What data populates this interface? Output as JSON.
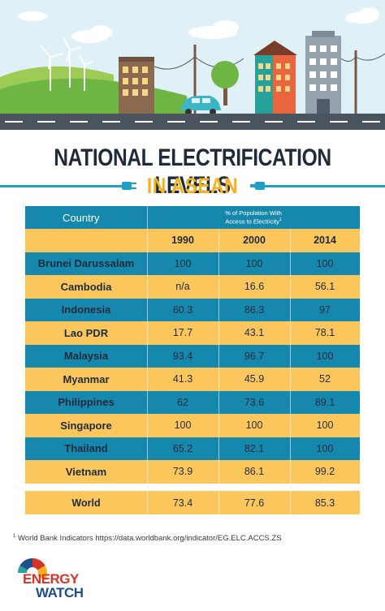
{
  "title": "NATIONAL ELECTRIFICATION LEVELS",
  "subtitle": "IN ASEAN",
  "table": {
    "col_country": "Country",
    "col_population_line1": "% of Population With",
    "col_population_line2": "Access to Electricity",
    "col_population_sup": "1",
    "years": [
      "1990",
      "2000",
      "2014"
    ],
    "rows": [
      {
        "country": "Brunei Darussalam",
        "v1990": "100",
        "v2000": "100",
        "v2014": "100"
      },
      {
        "country": "Cambodia",
        "v1990": "n/a",
        "v2000": "16.6",
        "v2014": "56.1"
      },
      {
        "country": "Indonesia",
        "v1990": "60.3",
        "v2000": "86.3",
        "v2014": "97"
      },
      {
        "country": "Lao PDR",
        "v1990": "17.7",
        "v2000": "43.1",
        "v2014": "78.1"
      },
      {
        "country": "Malaysia",
        "v1990": "93.4",
        "v2000": "96.7",
        "v2014": "100"
      },
      {
        "country": "Myanmar",
        "v1990": "41.3",
        "v2000": "45.9",
        "v2014": "52"
      },
      {
        "country": "Philippines",
        "v1990": "62",
        "v2000": "73.6",
        "v2014": "89.1"
      },
      {
        "country": "Singapore",
        "v1990": "100",
        "v2000": "100",
        "v2014": "100"
      },
      {
        "country": "Thailand",
        "v1990": "65.2",
        "v2000": "82.1",
        "v2014": "100"
      },
      {
        "country": "Vietnam",
        "v1990": "73.9",
        "v2000": "86.1",
        "v2014": "99.2"
      }
    ],
    "world": {
      "country": "World",
      "v1990": "73.4",
      "v2000": "77.6",
      "v2014": "85.3"
    }
  },
  "footnote": {
    "sup": "1",
    "text": "World Bank Indicators https://data.worldbank.org/indicator/EG.ELC.ACCS.ZS"
  },
  "logo": {
    "line1": "ENERGY",
    "line2": "WATCH"
  },
  "colors": {
    "blue": "#1688ad",
    "gold": "#fbc75d",
    "accent": "#f5b120",
    "dark": "#1f2b3a"
  }
}
